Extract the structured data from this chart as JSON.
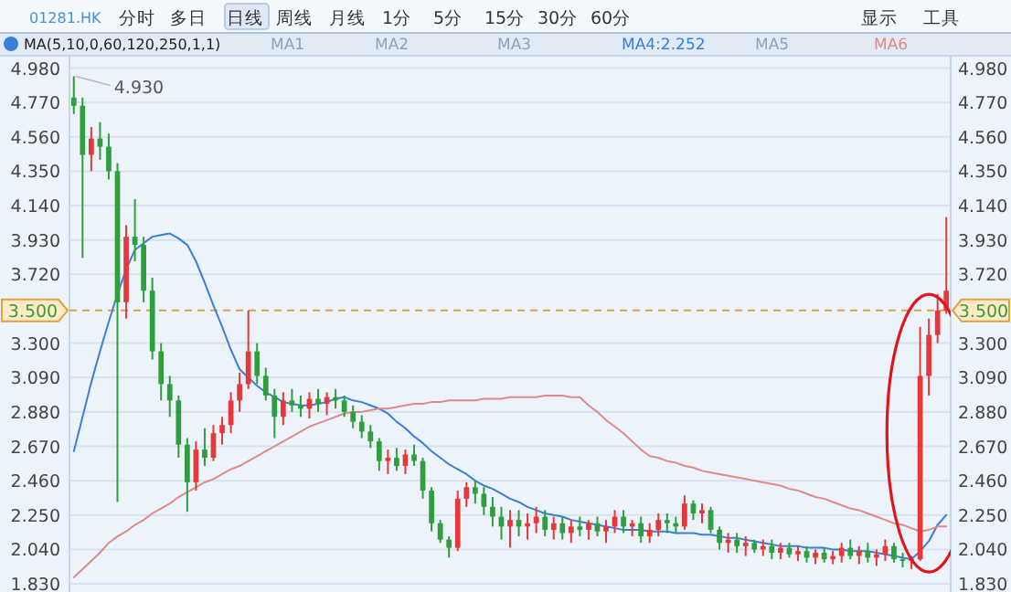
{
  "chart_data": {
    "type": "candlestick",
    "title": "01281.HK",
    "legend_title": "MA(5,10,0,60,120,250,1,1)",
    "legend": "top",
    "annotations": [
      "分时",
      "多日",
      "日线",
      "周线",
      "月线",
      "1分",
      "5分",
      "15分",
      "30分",
      "60分",
      "显示",
      "工具",
      "MA1",
      "MA2",
      "MA3",
      "MA5",
      "4.930"
    ],
    "categories": [
      null,
      null,
      null,
      null,
      null,
      null,
      null,
      null,
      null,
      null,
      null,
      null,
      null,
      null,
      null,
      null,
      null,
      null,
      null,
      null,
      null,
      null,
      null,
      null,
      null,
      null,
      null,
      null,
      null,
      null,
      null,
      null,
      null,
      null,
      null,
      null,
      null,
      null,
      null,
      null,
      null,
      null,
      null,
      null,
      null,
      null,
      null,
      null,
      null,
      null,
      null,
      null,
      null,
      null,
      null,
      null,
      null,
      null,
      null,
      null,
      null,
      null,
      null,
      null,
      null,
      null,
      null,
      null,
      null,
      null,
      null,
      null,
      null,
      null,
      null,
      null,
      null,
      null,
      null,
      null,
      null,
      null,
      null,
      null,
      null,
      null,
      null,
      null,
      null,
      null,
      null,
      null,
      null,
      null,
      null,
      null,
      null,
      null,
      null,
      null,
      null
    ],
    "ohlc": [
      [
        4.8,
        4.93,
        4.7,
        4.75
      ],
      [
        4.75,
        4.8,
        3.82,
        4.45
      ],
      [
        4.45,
        4.62,
        4.35,
        4.55
      ],
      [
        4.55,
        4.65,
        4.42,
        4.5
      ],
      [
        4.5,
        4.58,
        4.3,
        4.35
      ],
      [
        4.35,
        4.4,
        2.33,
        3.55
      ],
      [
        3.55,
        4.02,
        3.45,
        3.95
      ],
      [
        3.95,
        4.18,
        3.8,
        3.9
      ],
      [
        3.9,
        3.95,
        3.55,
        3.62
      ],
      [
        3.62,
        3.7,
        3.2,
        3.25
      ],
      [
        3.25,
        3.3,
        2.95,
        3.05
      ],
      [
        3.05,
        3.1,
        2.85,
        2.95
      ],
      [
        2.95,
        2.98,
        2.6,
        2.68
      ],
      [
        2.68,
        2.72,
        2.27,
        2.45
      ],
      [
        2.45,
        2.7,
        2.4,
        2.65
      ],
      [
        2.65,
        2.78,
        2.55,
        2.6
      ],
      [
        2.6,
        2.8,
        2.58,
        2.75
      ],
      [
        2.75,
        2.85,
        2.68,
        2.8
      ],
      [
        2.8,
        3.0,
        2.75,
        2.95
      ],
      [
        2.95,
        3.12,
        2.88,
        3.05
      ],
      [
        3.05,
        3.5,
        3.02,
        3.25
      ],
      [
        3.25,
        3.3,
        3.05,
        3.1
      ],
      [
        3.1,
        3.15,
        2.95,
        2.98
      ],
      [
        2.98,
        3.02,
        2.72,
        2.85
      ],
      [
        2.85,
        3.0,
        2.8,
        2.95
      ],
      [
        2.95,
        3.02,
        2.88,
        2.92
      ],
      [
        2.92,
        2.98,
        2.85,
        2.9
      ],
      [
        2.9,
        3.0,
        2.84,
        2.96
      ],
      [
        2.96,
        3.02,
        2.88,
        2.93
      ],
      [
        2.93,
        3.0,
        2.86,
        2.97
      ],
      [
        2.97,
        3.02,
        2.9,
        2.95
      ],
      [
        2.95,
        2.98,
        2.85,
        2.88
      ],
      [
        2.88,
        2.92,
        2.78,
        2.82
      ],
      [
        2.82,
        2.86,
        2.72,
        2.76
      ],
      [
        2.76,
        2.8,
        2.66,
        2.7
      ],
      [
        2.7,
        2.72,
        2.52,
        2.58
      ],
      [
        2.58,
        2.65,
        2.5,
        2.6
      ],
      [
        2.6,
        2.66,
        2.52,
        2.55
      ],
      [
        2.55,
        2.65,
        2.5,
        2.62
      ],
      [
        2.62,
        2.68,
        2.55,
        2.58
      ],
      [
        2.58,
        2.6,
        2.35,
        2.4
      ],
      [
        2.4,
        2.42,
        2.15,
        2.2
      ],
      [
        2.2,
        2.22,
        2.08,
        2.1
      ],
      [
        2.1,
        2.12,
        1.99,
        2.05
      ],
      [
        2.05,
        2.4,
        2.03,
        2.35
      ],
      [
        2.35,
        2.45,
        2.3,
        2.42
      ],
      [
        2.42,
        2.46,
        2.32,
        2.38
      ],
      [
        2.38,
        2.42,
        2.25,
        2.3
      ],
      [
        2.3,
        2.36,
        2.18,
        2.24
      ],
      [
        2.24,
        2.3,
        2.1,
        2.18
      ],
      [
        2.18,
        2.28,
        2.05,
        2.22
      ],
      [
        2.22,
        2.28,
        2.12,
        2.18
      ],
      [
        2.18,
        2.26,
        2.1,
        2.2
      ],
      [
        2.2,
        2.3,
        2.14,
        2.24
      ],
      [
        2.24,
        2.28,
        2.12,
        2.16
      ],
      [
        2.16,
        2.24,
        2.1,
        2.2
      ],
      [
        2.2,
        2.24,
        2.1,
        2.14
      ],
      [
        2.14,
        2.22,
        2.08,
        2.18
      ],
      [
        2.18,
        2.24,
        2.12,
        2.16
      ],
      [
        2.16,
        2.22,
        2.1,
        2.2
      ],
      [
        2.2,
        2.24,
        2.12,
        2.15
      ],
      [
        2.15,
        2.22,
        2.08,
        2.18
      ],
      [
        2.18,
        2.28,
        2.14,
        2.24
      ],
      [
        2.24,
        2.28,
        2.14,
        2.18
      ],
      [
        2.18,
        2.22,
        2.12,
        2.2
      ],
      [
        2.2,
        2.24,
        2.08,
        2.12
      ],
      [
        2.12,
        2.2,
        2.08,
        2.16
      ],
      [
        2.16,
        2.26,
        2.12,
        2.22
      ],
      [
        2.22,
        2.26,
        2.14,
        2.2
      ],
      [
        2.2,
        2.24,
        2.14,
        2.18
      ],
      [
        2.18,
        2.37,
        2.16,
        2.32
      ],
      [
        2.32,
        2.34,
        2.22,
        2.26
      ],
      [
        2.26,
        2.32,
        2.2,
        2.28
      ],
      [
        2.28,
        2.3,
        2.14,
        2.16
      ],
      [
        2.16,
        2.18,
        2.04,
        2.08
      ],
      [
        2.08,
        2.14,
        2.02,
        2.1
      ],
      [
        2.1,
        2.14,
        2.02,
        2.06
      ],
      [
        2.06,
        2.12,
        2.0,
        2.08
      ],
      [
        2.08,
        2.1,
        2.02,
        2.04
      ],
      [
        2.04,
        2.1,
        2.0,
        2.06
      ],
      [
        2.06,
        2.1,
        1.98,
        2.02
      ],
      [
        2.02,
        2.08,
        1.98,
        2.05
      ],
      [
        2.05,
        2.08,
        1.99,
        2.01
      ],
      [
        2.01,
        2.06,
        1.97,
        2.03
      ],
      [
        2.03,
        2.06,
        1.96,
        1.99
      ],
      [
        1.99,
        2.04,
        1.95,
        2.02
      ],
      [
        2.02,
        2.05,
        1.96,
        1.98
      ],
      [
        1.98,
        2.03,
        1.95,
        2.0
      ],
      [
        2.0,
        2.08,
        1.96,
        2.05
      ],
      [
        2.05,
        2.1,
        1.98,
        2.0
      ],
      [
        2.0,
        2.06,
        1.95,
        2.03
      ],
      [
        2.03,
        2.08,
        1.96,
        1.99
      ],
      [
        1.99,
        2.04,
        1.94,
        2.01
      ],
      [
        2.01,
        2.1,
        1.97,
        2.06
      ],
      [
        2.06,
        2.08,
        1.96,
        1.98
      ],
      [
        1.98,
        2.02,
        1.93,
        1.97
      ],
      [
        1.97,
        2.0,
        1.92,
        1.98
      ],
      [
        1.98,
        3.4,
        1.97,
        3.1
      ],
      [
        3.1,
        3.45,
        2.98,
        3.35
      ],
      [
        3.35,
        3.6,
        3.3,
        3.5
      ],
      [
        3.5,
        4.07,
        3.48,
        3.62
      ]
    ],
    "colors": [
      "#2e9e3e",
      "#2e9e3e",
      "#e5383b",
      "#2e9e3e",
      "#2e9e3e",
      "#2e9e3e",
      "#e5383b",
      "#2e9e3e",
      "#2e9e3e",
      "#2e9e3e",
      "#2e9e3e",
      "#2e9e3e",
      "#2e9e3e",
      "#2e9e3e",
      "#e5383b",
      "#2e9e3e",
      "#e5383b",
      "#e5383b",
      "#e5383b",
      "#e5383b",
      "#e5383b",
      "#2e9e3e",
      "#2e9e3e",
      "#2e9e3e",
      "#e5383b",
      "#2e9e3e",
      "#2e9e3e",
      "#e5383b",
      "#2e9e3e",
      "#e5383b",
      "#2e9e3e",
      "#2e9e3e",
      "#2e9e3e",
      "#2e9e3e",
      "#2e9e3e",
      "#2e9e3e",
      "#e5383b",
      "#2e9e3e",
      "#e5383b",
      "#2e9e3e",
      "#2e9e3e",
      "#2e9e3e",
      "#2e9e3e",
      "#2e9e3e",
      "#e5383b",
      "#e5383b",
      "#2e9e3e",
      "#2e9e3e",
      "#2e9e3e",
      "#2e9e3e",
      "#e5383b",
      "#2e9e3e",
      "#e5383b",
      "#e5383b",
      "#2e9e3e",
      "#e5383b",
      "#2e9e3e",
      "#e5383b",
      "#2e9e3e",
      "#e5383b",
      "#2e9e3e",
      "#e5383b",
      "#e5383b",
      "#2e9e3e",
      "#e5383b",
      "#2e9e3e",
      "#e5383b",
      "#e5383b",
      "#2e9e3e",
      "#2e9e3e",
      "#e5383b",
      "#2e9e3e",
      "#e5383b",
      "#2e9e3e",
      "#2e9e3e",
      "#e5383b",
      "#2e9e3e",
      "#e5383b",
      "#2e9e3e",
      "#e5383b",
      "#2e9e3e",
      "#e5383b",
      "#2e9e3e",
      "#e5383b",
      "#2e9e3e",
      "#e5383b",
      "#2e9e3e",
      "#e5383b",
      "#e5383b",
      "#2e9e3e",
      "#e5383b",
      "#2e9e3e",
      "#e5383b",
      "#e5383b",
      "#2e9e3e",
      "#2e9e3e",
      "#e5383b",
      "#e5383b",
      "#e5383b",
      "#e5383b",
      "#e5383b"
    ],
    "series": [
      {
        "type": "line",
        "name": "MA4:2.252",
        "color": "#3b7fd6",
        "values": [
          2.64,
          2.85,
          3.06,
          3.25,
          3.43,
          3.6,
          3.75,
          3.87,
          3.91,
          3.95,
          3.96,
          3.97,
          3.94,
          3.9,
          3.8,
          3.67,
          3.53,
          3.4,
          3.26,
          3.14,
          3.09,
          3.04,
          3.0,
          2.97,
          2.94,
          2.93,
          2.92,
          2.92,
          2.93,
          2.94,
          2.96,
          2.97,
          2.95,
          2.94,
          2.92,
          2.9,
          2.87,
          2.82,
          2.78,
          2.73,
          2.69,
          2.64,
          2.6,
          2.56,
          2.53,
          2.5,
          2.46,
          2.43,
          2.41,
          2.38,
          2.35,
          2.33,
          2.3,
          2.28,
          2.26,
          2.25,
          2.24,
          2.22,
          2.21,
          2.2,
          2.19,
          2.18,
          2.17,
          2.16,
          2.16,
          2.16,
          2.15,
          2.15,
          2.15,
          2.14,
          2.14,
          2.14,
          2.13,
          2.13,
          2.12,
          2.11,
          2.11,
          2.1,
          2.09,
          2.08,
          2.07,
          2.06,
          2.06,
          2.06,
          2.05,
          2.05,
          2.05,
          2.04,
          2.04,
          2.03,
          2.03,
          2.03,
          2.02,
          2.01,
          2.0,
          1.99,
          1.98,
          2.03,
          2.09,
          2.19,
          2.25
        ]
      },
      {
        "type": "line",
        "name": "MA6",
        "color": "#e08a8a",
        "values": [
          1.87,
          1.92,
          1.97,
          2.02,
          2.08,
          2.12,
          2.15,
          2.19,
          2.22,
          2.26,
          2.29,
          2.32,
          2.36,
          2.39,
          2.42,
          2.45,
          2.47,
          2.5,
          2.53,
          2.55,
          2.58,
          2.61,
          2.64,
          2.67,
          2.7,
          2.73,
          2.76,
          2.79,
          2.81,
          2.83,
          2.85,
          2.87,
          2.88,
          2.88,
          2.89,
          2.9,
          2.9,
          2.91,
          2.92,
          2.93,
          2.93,
          2.94,
          2.94,
          2.95,
          2.95,
          2.95,
          2.95,
          2.96,
          2.96,
          2.96,
          2.97,
          2.97,
          2.97,
          2.97,
          2.98,
          2.98,
          2.98,
          2.97,
          2.97,
          2.92,
          2.88,
          2.83,
          2.79,
          2.75,
          2.7,
          2.65,
          2.61,
          2.6,
          2.58,
          2.57,
          2.55,
          2.54,
          2.52,
          2.51,
          2.5,
          2.49,
          2.48,
          2.47,
          2.46,
          2.45,
          2.44,
          2.43,
          2.41,
          2.4,
          2.38,
          2.36,
          2.35,
          2.33,
          2.31,
          2.29,
          2.28,
          2.26,
          2.24,
          2.22,
          2.2,
          2.19,
          2.17,
          2.15,
          2.16,
          2.18,
          2.18
        ]
      }
    ],
    "ylim": [
      1.78,
      5.05
    ],
    "yticks": [
      {
        "value": 1.83,
        "label": "1.830"
      },
      {
        "value": 2.04,
        "label": "2.040"
      },
      {
        "value": 2.25,
        "label": "2.250"
      },
      {
        "value": 2.46,
        "label": "2.460"
      },
      {
        "value": 2.67,
        "label": "2.670"
      },
      {
        "value": 2.88,
        "label": "2.880"
      },
      {
        "value": 3.09,
        "label": "3.090"
      },
      {
        "value": 3.3,
        "label": "3.300"
      },
      {
        "value": 3.72,
        "label": "3.720"
      },
      {
        "value": 3.93,
        "label": "3.930"
      },
      {
        "value": 4.14,
        "label": "4.140"
      },
      {
        "value": 4.35,
        "label": "4.350"
      },
      {
        "value": 4.56,
        "label": "4.560"
      },
      {
        "value": 4.77,
        "label": "4.770"
      },
      {
        "value": 4.98,
        "label": "4.980"
      }
    ],
    "y2lim": [
      1.78,
      5.05
    ],
    "y2ticks": [
      {
        "value": 1.83,
        "label": "1.830"
      },
      {
        "value": 2.04,
        "label": "2.040"
      },
      {
        "value": 2.25,
        "label": "2.250"
      },
      {
        "value": 2.46,
        "label": "2.460"
      },
      {
        "value": 2.67,
        "label": "2.670"
      },
      {
        "value": 2.88,
        "label": "2.880"
      },
      {
        "value": 3.09,
        "label": "3.090"
      },
      {
        "value": 3.3,
        "label": "3.300"
      },
      {
        "value": 3.72,
        "label": "3.720"
      },
      {
        "value": 3.93,
        "label": "3.930"
      },
      {
        "value": 4.14,
        "label": "4.140"
      },
      {
        "value": 4.35,
        "label": "4.350"
      },
      {
        "value": 4.56,
        "label": "4.560"
      },
      {
        "value": 4.77,
        "label": "4.770"
      },
      {
        "value": 4.98,
        "label": "4.980"
      }
    ],
    "grid": "y",
    "ref_lines": [
      {
        "axis": "y",
        "value": 3.5,
        "label": "3.500",
        "color": "#e0a040",
        "line_style": "dashed"
      }
    ]
  }
}
